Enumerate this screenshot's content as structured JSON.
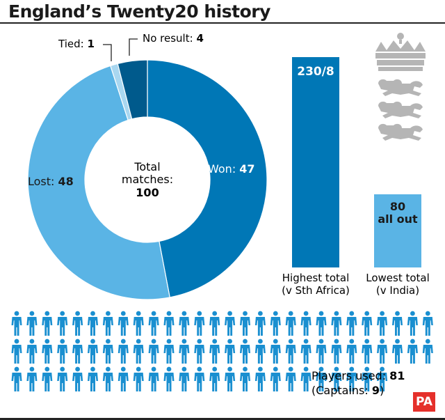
{
  "title": "England’s Twenty20 history",
  "colors": {
    "won": "#0077b6",
    "lost": "#5ab4e5",
    "tied": "#a9d7f0",
    "no_result": "#005a8c",
    "highest_bar": "#0077b6",
    "lowest_bar": "#5ab4e5",
    "figure": "#1a8fd0",
    "crest": "#b5b5b5",
    "logo": "#e5302b"
  },
  "donut": {
    "center_line1": "Total",
    "center_line2": "matches:",
    "center_value": "100",
    "labels": {
      "won": "Won:",
      "won_value": "47",
      "lost": "Lost:",
      "lost_value": "48",
      "tied": "Tied:",
      "tied_value": "1",
      "no_result": "No result:",
      "no_result_value": "4"
    }
  },
  "bars": {
    "highest_value": "230/8",
    "highest_label1": "Highest total",
    "highest_label2": "(v Sth Africa)",
    "lowest_value1": "80",
    "lowest_value2": "all out",
    "lowest_label1": "Lowest total",
    "lowest_label2": "(v India)"
  },
  "players": {
    "label": "Players used:",
    "value": "81",
    "captains_prefix": "(Captains:",
    "captains_value": "9",
    "captains_suffix": ")"
  },
  "logo_text": "PA",
  "crest_icon": "england-cricket-crest-icon",
  "chart_data": [
    {
      "type": "pie",
      "title": "",
      "categories": [
        "Won",
        "Lost",
        "Tied",
        "No result"
      ],
      "values": [
        47,
        48,
        1,
        4
      ],
      "total": 100
    },
    {
      "type": "bar",
      "title": "",
      "categories": [
        "Highest total (v Sth Africa)",
        "Lowest total (v India)"
      ],
      "values": [
        230,
        80
      ],
      "ylim": [
        0,
        230
      ]
    },
    {
      "type": "pictogram",
      "title": "",
      "categories": [
        "Players used",
        "Captains"
      ],
      "values": [
        81,
        9
      ]
    }
  ]
}
